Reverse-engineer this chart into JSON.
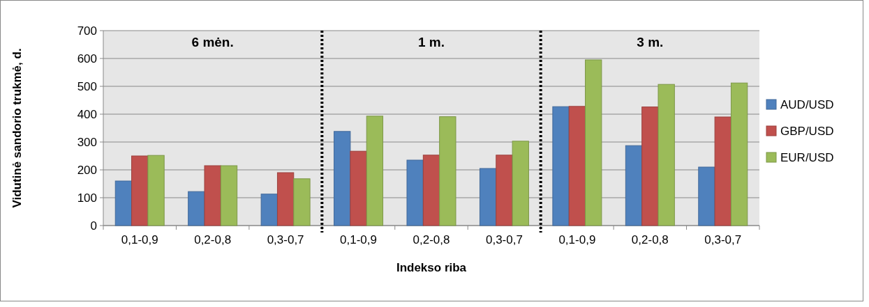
{
  "chart_data": {
    "type": "bar",
    "xlabel": "Indekso riba",
    "ylabel": "Vidutinė sandorio trukmė, d.",
    "categories": [
      "0,1-0,9",
      "0,2-0,8",
      "0,3-0,7",
      "0,1-0,9",
      "0,2-0,8",
      "0,3-0,7",
      "0,1-0,9",
      "0,2-0,8",
      "0,3-0,7"
    ],
    "series": [
      {
        "name": "AUD/USD",
        "color": "#4f81bd",
        "values": [
          160,
          122,
          113,
          338,
          235,
          205,
          427,
          287,
          210
        ]
      },
      {
        "name": "GBP/USD",
        "color": "#c0504d",
        "values": [
          250,
          215,
          190,
          267,
          253,
          253,
          428,
          426,
          390
        ]
      },
      {
        "name": "EUR/USD",
        "color": "#9bbb59",
        "values": [
          252,
          215,
          168,
          393,
          391,
          303,
          595,
          507,
          512
        ]
      }
    ],
    "ylim": [
      0,
      700
    ],
    "yticks": [
      0,
      100,
      200,
      300,
      400,
      500,
      600,
      700
    ],
    "grid": "y",
    "legend": "right",
    "annotations": [
      "6 mėn.",
      "1 m.",
      "3 m."
    ]
  }
}
